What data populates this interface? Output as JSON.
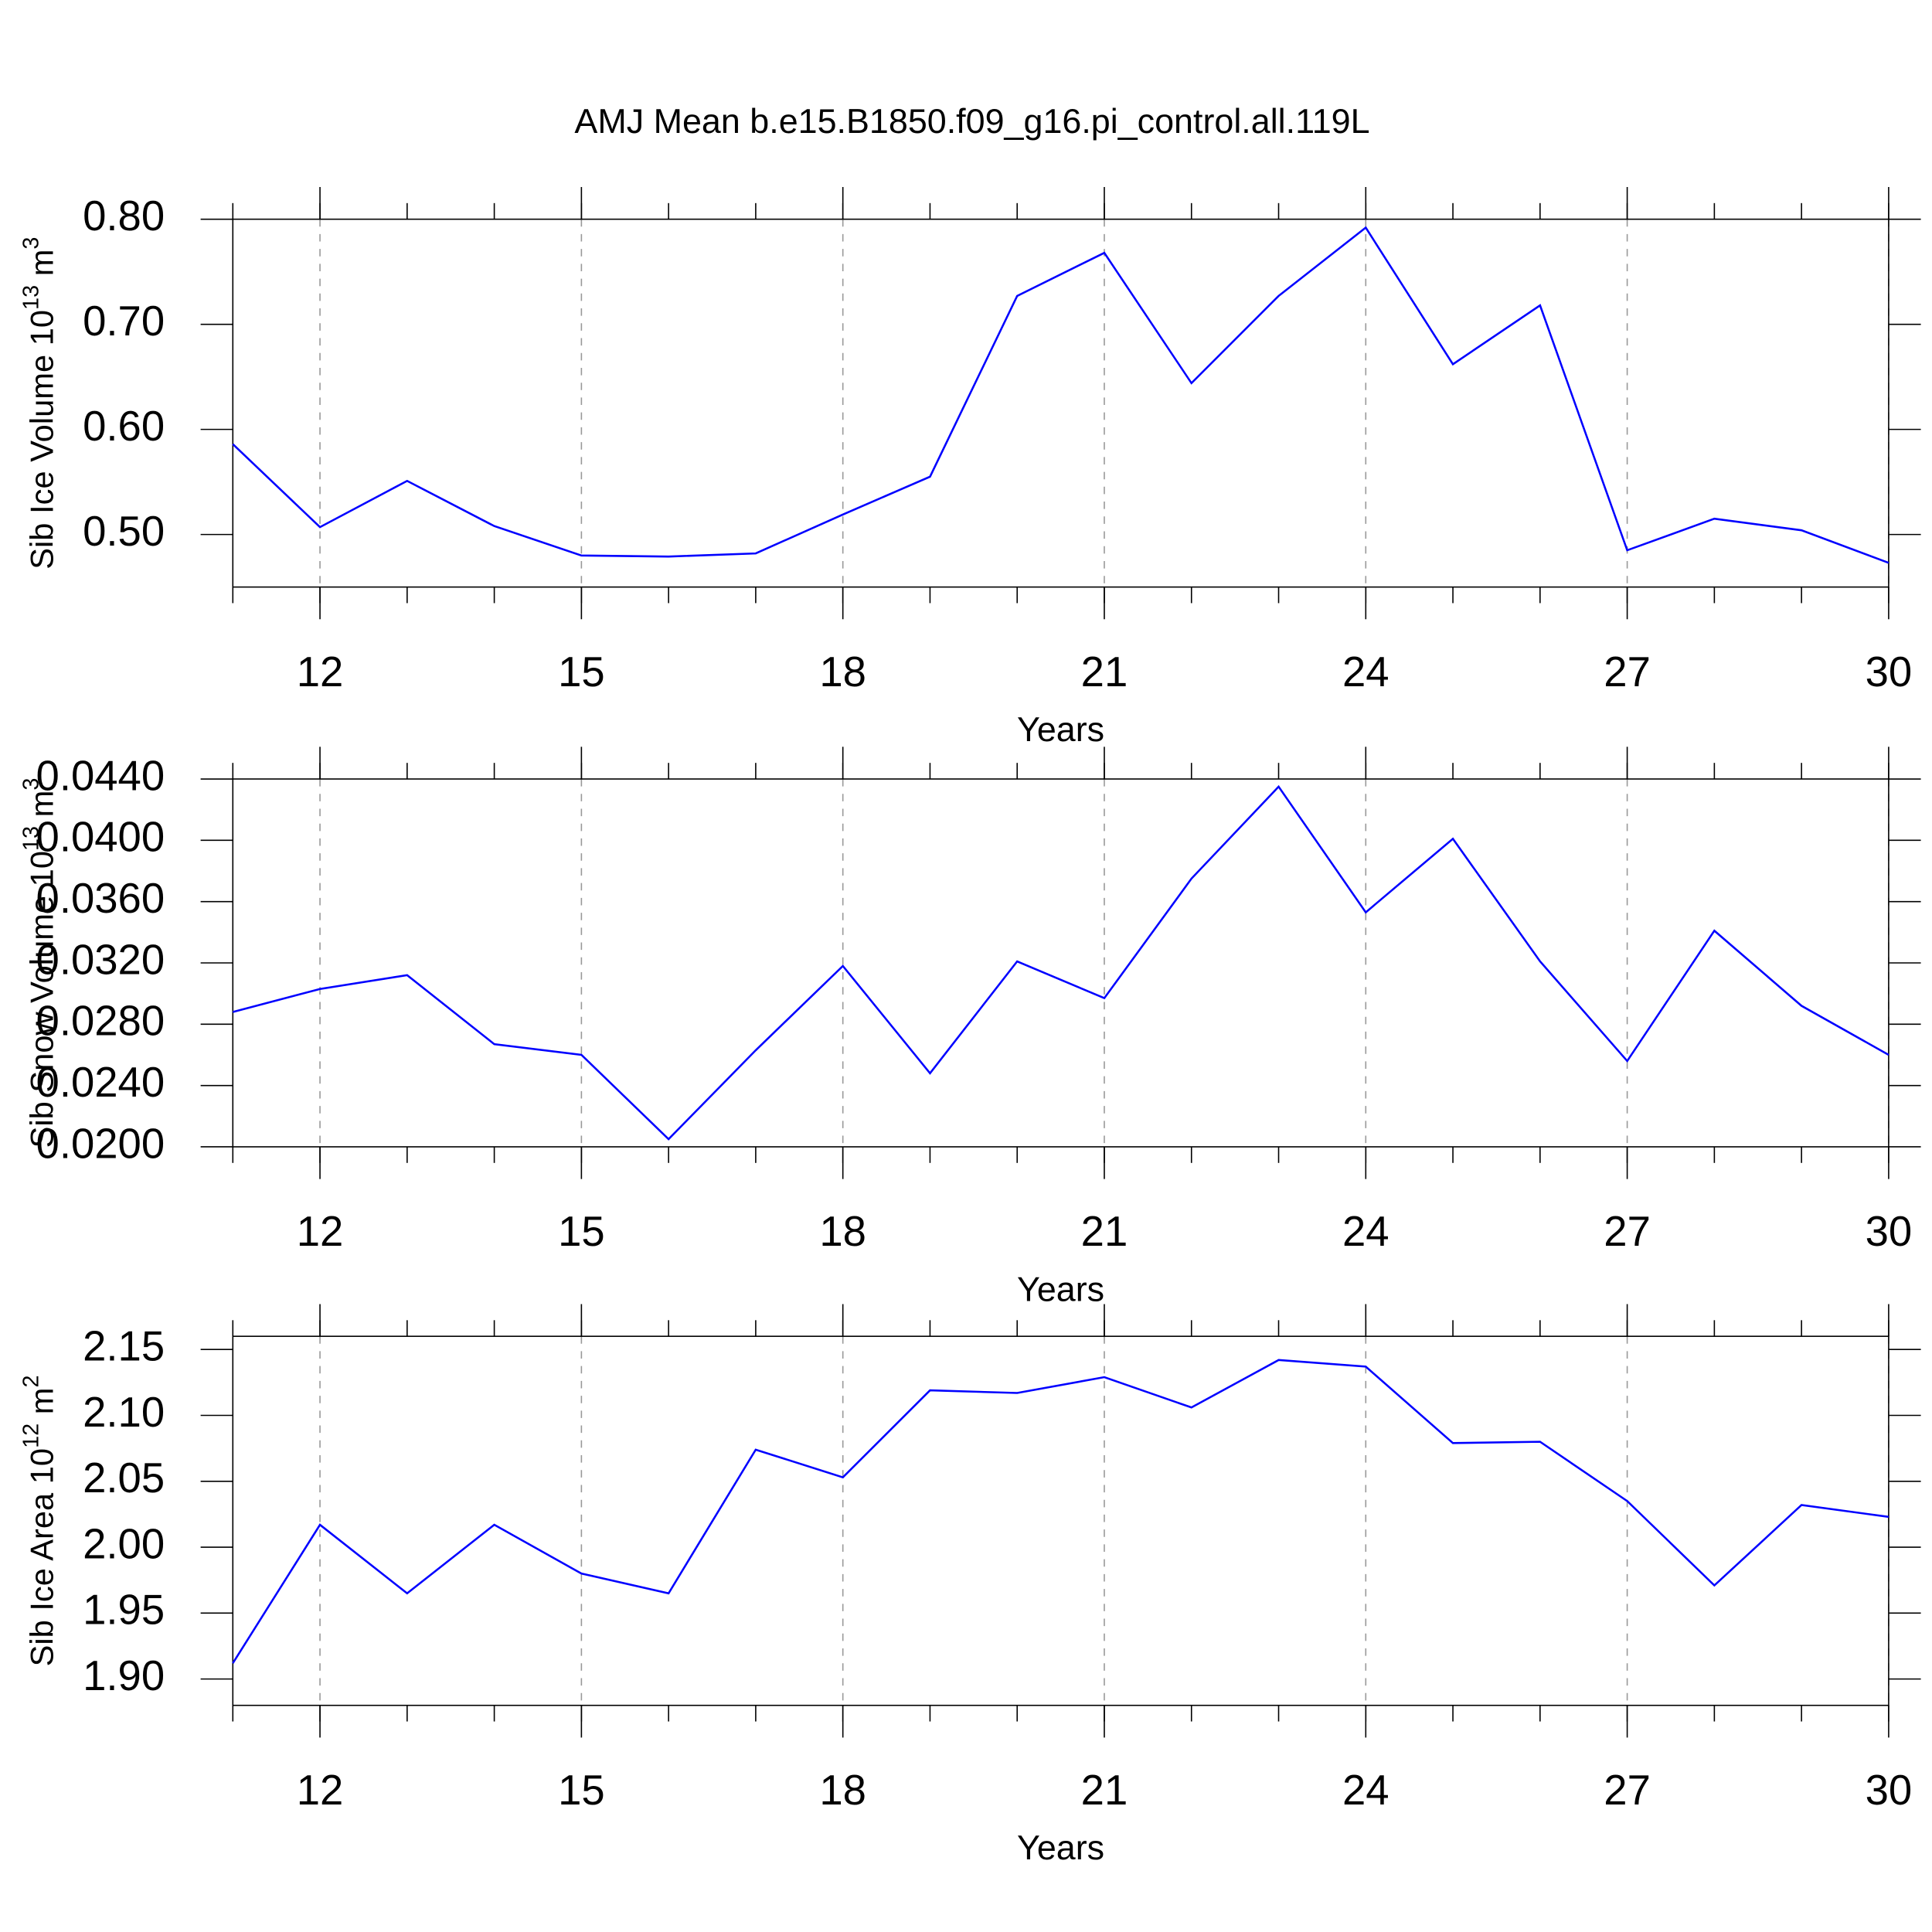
{
  "chart_data": [
    {
      "type": "line",
      "title": "AMJ Mean b.e15.B1850.f09_g16.pi_control.all.119L",
      "ylabel": [
        "Sib Ice Volume 10",
        "13",
        " m",
        "3"
      ],
      "xlabel": "Years",
      "x": [
        11,
        12,
        13,
        14,
        15,
        16,
        17,
        18,
        19,
        20,
        21,
        22,
        23,
        24,
        25,
        26,
        27,
        28,
        29,
        30
      ],
      "series": [
        {
          "color": "#0000ff",
          "values": [
            0.586,
            0.507,
            0.551,
            0.508,
            0.48,
            0.479,
            0.482,
            0.519,
            0.555,
            0.727,
            0.768,
            0.644,
            0.727,
            0.792,
            0.662,
            0.718,
            0.485,
            0.515,
            0.504,
            0.473
          ]
        }
      ],
      "xlim": [
        11,
        30
      ],
      "xticks": [
        12,
        15,
        18,
        21,
        24,
        27,
        30
      ],
      "ylim": [
        0.45,
        0.8
      ],
      "yticks": [
        {
          "value": 0.5,
          "label": "0.50"
        },
        {
          "value": 0.6,
          "label": "0.60"
        },
        {
          "value": 0.7,
          "label": "0.70"
        },
        {
          "value": 0.8,
          "label": "0.80"
        }
      ],
      "grid": "x"
    },
    {
      "type": "line",
      "ylabel": [
        "Sib Snow Volume 10",
        "13",
        " m",
        "3"
      ],
      "xlabel": "Years",
      "x": [
        11,
        12,
        13,
        14,
        15,
        16,
        17,
        18,
        19,
        20,
        21,
        22,
        23,
        24,
        25,
        26,
        27,
        28,
        29,
        30
      ],
      "series": [
        {
          "color": "#0000ff",
          "values": [
            0.0288,
            0.0303,
            0.0312,
            0.0267,
            0.026,
            0.0205,
            0.0263,
            0.0318,
            0.0248,
            0.0321,
            0.0297,
            0.0375,
            0.0435,
            0.0353,
            0.0401,
            0.0321,
            0.0256,
            0.0341,
            0.0292,
            0.026
          ]
        }
      ],
      "xlim": [
        11,
        30
      ],
      "xticks": [
        12,
        15,
        18,
        21,
        24,
        27,
        30
      ],
      "ylim": [
        0.02,
        0.044
      ],
      "yticks": [
        {
          "value": 0.02,
          "label": "0.0200"
        },
        {
          "value": 0.024,
          "label": "0.0240"
        },
        {
          "value": 0.028,
          "label": "0.0280"
        },
        {
          "value": 0.032,
          "label": "0.0320"
        },
        {
          "value": 0.036,
          "label": "0.0360"
        },
        {
          "value": 0.04,
          "label": "0.0400"
        },
        {
          "value": 0.044,
          "label": "0.0440"
        }
      ],
      "grid": "x"
    },
    {
      "type": "line",
      "ylabel": [
        "Sib Ice Area 10",
        "12",
        " m",
        "2"
      ],
      "xlabel": "Years",
      "x": [
        11,
        12,
        13,
        14,
        15,
        16,
        17,
        18,
        19,
        20,
        21,
        22,
        23,
        24,
        25,
        26,
        27,
        28,
        29,
        30
      ],
      "series": [
        {
          "color": "#0000ff",
          "values": [
            1.912,
            2.017,
            1.965,
            2.017,
            1.98,
            1.965,
            2.074,
            2.053,
            2.119,
            2.117,
            2.129,
            2.106,
            2.142,
            2.137,
            2.079,
            2.08,
            2.035,
            1.971,
            2.032,
            2.023
          ]
        }
      ],
      "xlim": [
        11,
        30
      ],
      "xticks": [
        12,
        15,
        18,
        21,
        24,
        27,
        30
      ],
      "ylim": [
        1.88,
        2.16
      ],
      "yticks": [
        {
          "value": 1.9,
          "label": "1.90"
        },
        {
          "value": 1.95,
          "label": "1.95"
        },
        {
          "value": 2.0,
          "label": "2.00"
        },
        {
          "value": 2.05,
          "label": "2.05"
        },
        {
          "value": 2.1,
          "label": "2.10"
        },
        {
          "value": 2.15,
          "label": "2.15"
        }
      ],
      "grid": "x"
    }
  ]
}
